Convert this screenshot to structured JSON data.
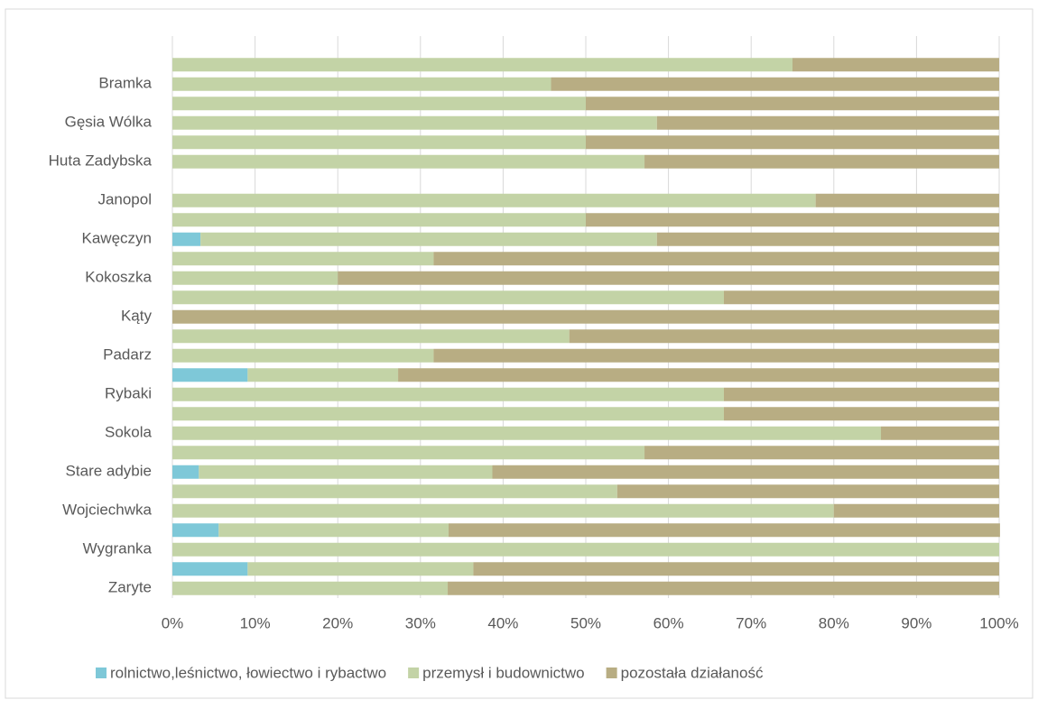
{
  "chart_data": {
    "type": "stacked_barh",
    "categories": [
      null,
      "Bramka",
      null,
      "Gęsia Wólka",
      null,
      "Huta Zadybska",
      null,
      "Janopol",
      null,
      "Kawęczyn",
      null,
      "Kokoszka",
      null,
      "Kąty",
      null,
      "Padarz",
      null,
      "Rybaki",
      null,
      "Sokola",
      null,
      "Stare adybie",
      null,
      "Wojciechwka",
      null,
      "Wygranka",
      null,
      "Zaryte"
    ],
    "series": [
      {
        "name": "rolnictwo,leśnictwo, łowiectwo i rybactwo",
        "color": "#7ec8d8",
        "values": [
          0,
          0,
          0,
          0,
          0,
          0,
          null,
          0,
          0,
          3.4,
          0,
          0,
          0,
          0,
          0,
          0,
          9.1,
          0,
          0,
          0,
          0,
          3.2,
          0,
          0,
          5.6,
          0,
          9.1,
          0
        ]
      },
      {
        "name": "przemysł i budownictwo",
        "color": "#c3d3a6",
        "values": [
          75,
          45.8,
          50,
          58.6,
          50,
          57.1,
          null,
          77.8,
          50,
          55.2,
          31.6,
          20,
          66.7,
          0,
          48,
          31.6,
          18.2,
          66.7,
          66.7,
          85.7,
          57.1,
          35.5,
          53.8,
          80,
          27.8,
          100,
          27.3,
          33.3
        ]
      },
      {
        "name": "pozostała działaność",
        "color": "#b8ad83",
        "values": [
          25,
          54.2,
          50,
          41.4,
          50,
          42.9,
          null,
          22.2,
          50,
          41.4,
          68.4,
          80,
          33.3,
          100,
          52,
          68.4,
          72.7,
          33.3,
          33.3,
          14.3,
          42.9,
          61.3,
          46.2,
          20,
          66.7,
          0,
          63.6,
          66.7
        ]
      }
    ],
    "xlim": [
      0,
      100
    ],
    "xticks": [
      {
        "value": 0,
        "label": "0%"
      },
      {
        "value": 10,
        "label": "10%"
      },
      {
        "value": 20,
        "label": "20%"
      },
      {
        "value": 30,
        "label": "30%"
      },
      {
        "value": 40,
        "label": "40%"
      },
      {
        "value": 50,
        "label": "50%"
      },
      {
        "value": 60,
        "label": "60%"
      },
      {
        "value": 70,
        "label": "70%"
      },
      {
        "value": 80,
        "label": "80%"
      },
      {
        "value": 90,
        "label": "90%"
      },
      {
        "value": 100,
        "label": "100%"
      }
    ],
    "grid": true,
    "legend": "bottom"
  }
}
